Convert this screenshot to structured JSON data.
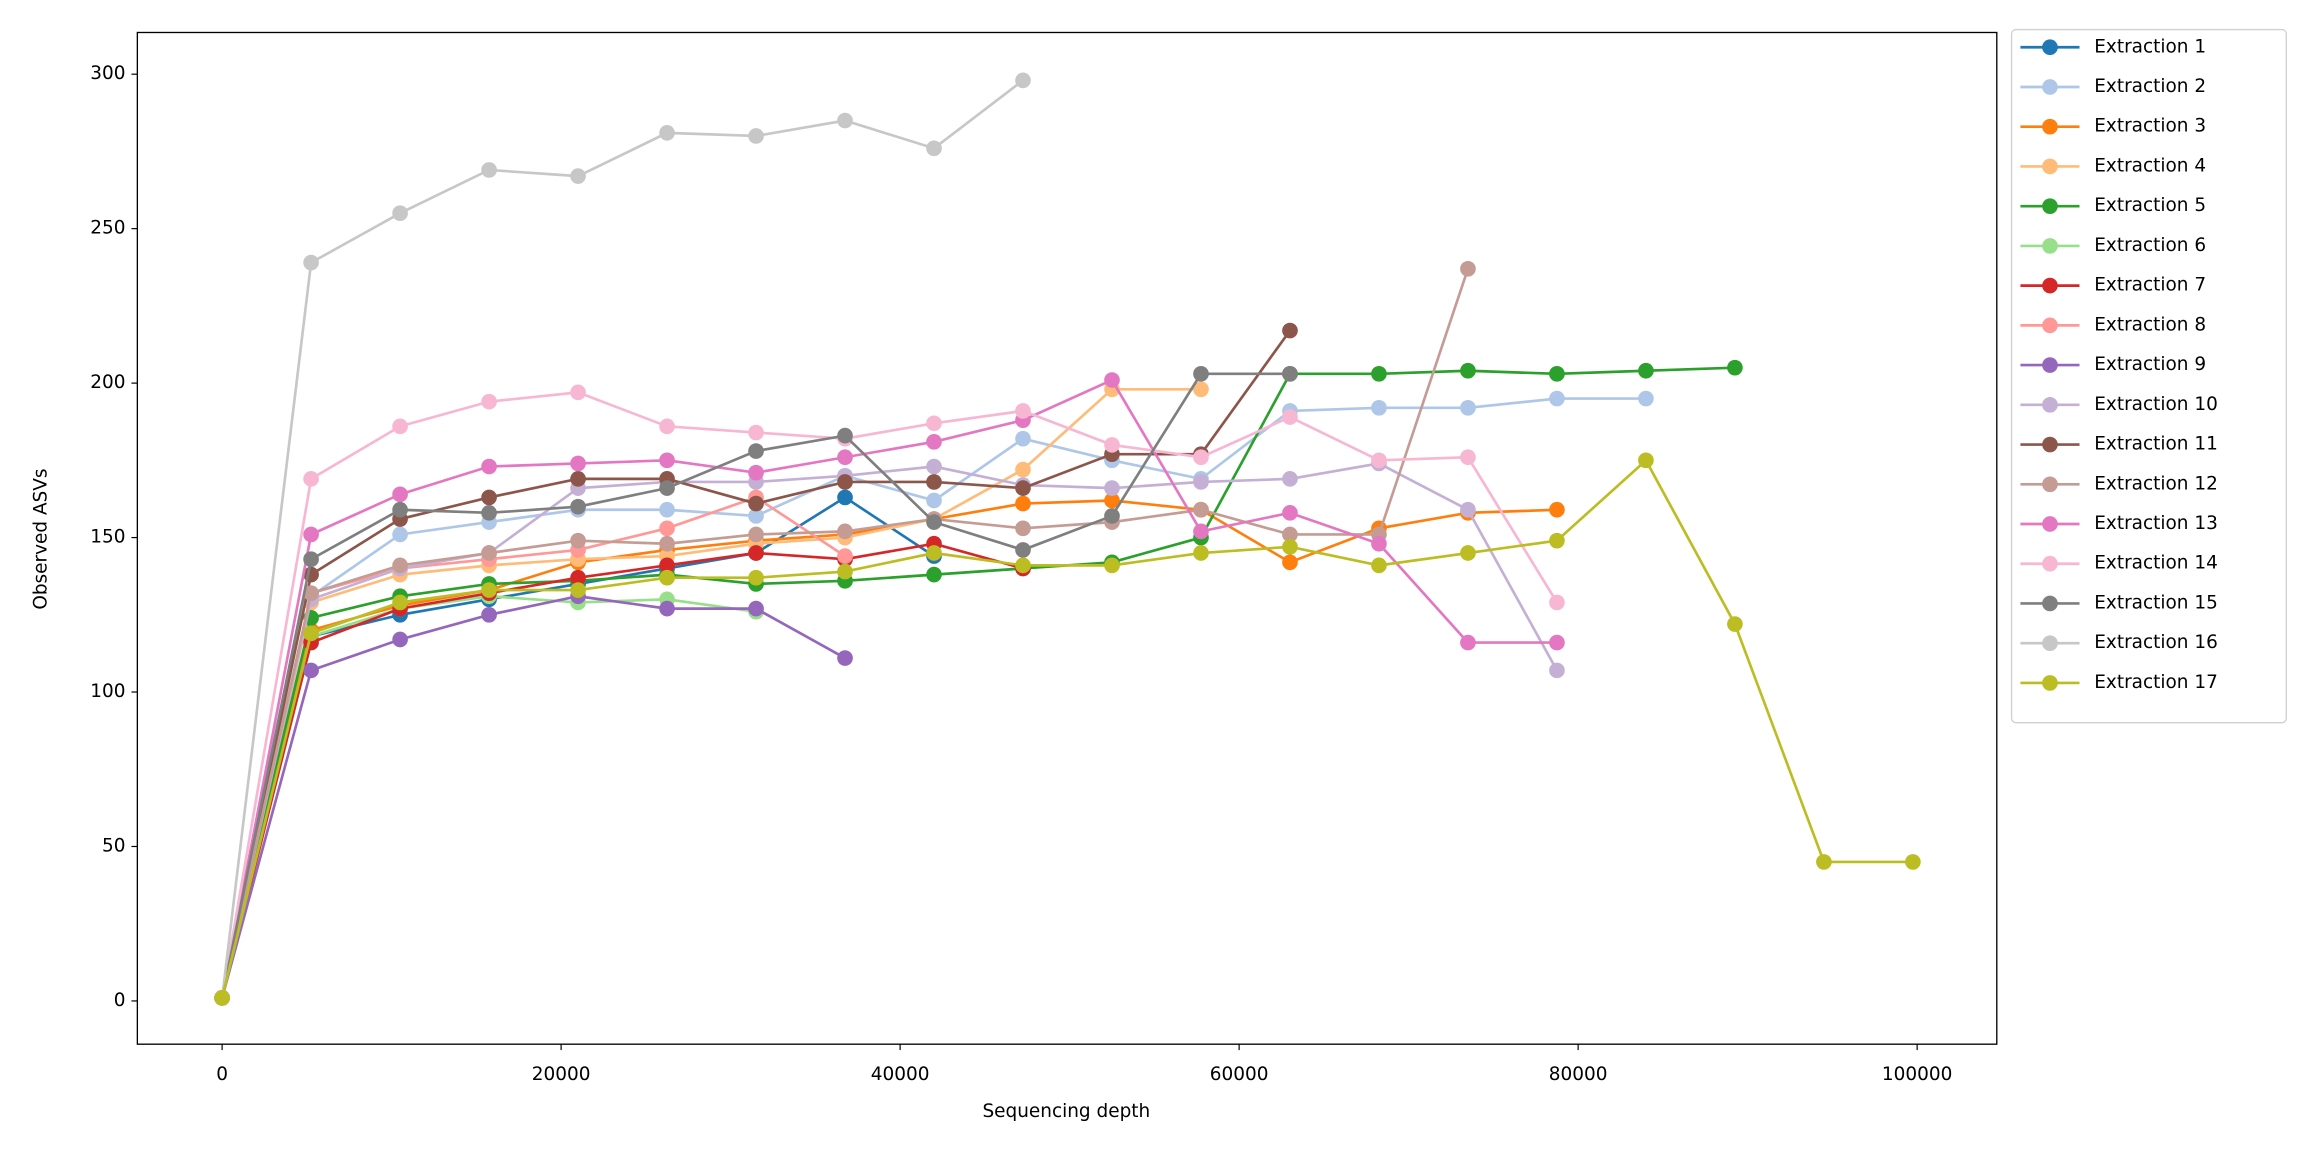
{
  "chart_data": {
    "type": "line",
    "xlabel": "Sequencing depth",
    "ylabel": "Observed ASVs",
    "x": [
      0,
      5250,
      10500,
      15750,
      21000,
      26250,
      31500,
      36750,
      42000,
      47250,
      52500,
      57750,
      63000,
      68250,
      73500,
      78750,
      84000,
      89250,
      94500,
      99750
    ],
    "xlim": [
      -5000,
      104700
    ],
    "xticks": [
      0,
      20000,
      40000,
      60000,
      80000,
      100000
    ],
    "ylim": [
      -14,
      313.5
    ],
    "yticks": [
      0,
      50,
      100,
      150,
      200,
      250,
      300
    ],
    "legend": "outside right",
    "series": [
      {
        "name": "Extraction 1",
        "color": "#1f77b4",
        "values": [
          1,
          118,
          125,
          130,
          135,
          140,
          145,
          163,
          144,
          null,
          null,
          null,
          null,
          null,
          null,
          null,
          null,
          null,
          null,
          null
        ]
      },
      {
        "name": "Extraction 2",
        "color": "#aec7e8",
        "values": [
          1,
          131,
          151,
          155,
          159,
          159,
          157,
          170,
          162,
          182,
          175,
          169,
          191,
          192,
          192,
          195,
          195,
          null,
          null,
          null
        ]
      },
      {
        "name": "Extraction 3",
        "color": "#ff7f0e",
        "values": [
          1,
          120,
          128,
          133,
          142,
          146,
          149,
          151,
          156,
          161,
          162,
          159,
          142,
          153,
          158,
          159,
          null,
          null,
          null,
          null
        ]
      },
      {
        "name": "Extraction 4",
        "color": "#ffbb78",
        "values": [
          1,
          129,
          138,
          141,
          143,
          144,
          148,
          150,
          156,
          172,
          198,
          198,
          null,
          null,
          null,
          null,
          null,
          null,
          null,
          null
        ]
      },
      {
        "name": "Extraction 5",
        "color": "#2ca02c",
        "values": [
          1,
          124,
          131,
          135,
          136,
          138,
          135,
          136,
          138,
          140,
          142,
          150,
          203,
          203,
          204,
          203,
          204,
          205,
          null,
          null
        ]
      },
      {
        "name": "Extraction 6",
        "color": "#98df8a",
        "values": [
          1,
          118,
          127,
          131,
          129,
          130,
          126,
          null,
          null,
          null,
          null,
          null,
          null,
          null,
          null,
          null,
          null,
          null,
          null,
          null
        ]
      },
      {
        "name": "Extraction 7",
        "color": "#d62728",
        "values": [
          1,
          116,
          127,
          132,
          137,
          141,
          145,
          143,
          148,
          140,
          null,
          null,
          null,
          null,
          null,
          null,
          null,
          null,
          null,
          null
        ]
      },
      {
        "name": "Extraction 8",
        "color": "#ff9896",
        "values": [
          1,
          132,
          140,
          143,
          146,
          153,
          163,
          144,
          null,
          null,
          null,
          null,
          null,
          null,
          null,
          null,
          null,
          null,
          null,
          null
        ]
      },
      {
        "name": "Extraction 9",
        "color": "#9467bd",
        "values": [
          1,
          107,
          117,
          125,
          131,
          127,
          127,
          111,
          null,
          null,
          null,
          null,
          null,
          null,
          null,
          null,
          null,
          null,
          null,
          null
        ]
      },
      {
        "name": "Extraction 10",
        "color": "#c5b0d5",
        "values": [
          1,
          130,
          140,
          145,
          166,
          168,
          168,
          170,
          173,
          167,
          166,
          168,
          169,
          174,
          159,
          107,
          null,
          null,
          null,
          null
        ]
      },
      {
        "name": "Extraction 11",
        "color": "#8c564b",
        "values": [
          1,
          138,
          156,
          163,
          169,
          169,
          161,
          168,
          168,
          166,
          177,
          177,
          217,
          null,
          null,
          null,
          null,
          null,
          null,
          null
        ]
      },
      {
        "name": "Extraction 12",
        "color": "#c49c94",
        "values": [
          1,
          132,
          141,
          145,
          149,
          148,
          151,
          152,
          156,
          153,
          155,
          159,
          151,
          151,
          237,
          null,
          null,
          null,
          null,
          null
        ]
      },
      {
        "name": "Extraction 13",
        "color": "#e377c2",
        "values": [
          1,
          151,
          164,
          173,
          174,
          175,
          171,
          176,
          181,
          188,
          201,
          152,
          158,
          148,
          116,
          116,
          null,
          null,
          null,
          null
        ]
      },
      {
        "name": "Extraction 14",
        "color": "#f7b6d2",
        "values": [
          1,
          169,
          186,
          194,
          197,
          186,
          184,
          182,
          187,
          191,
          180,
          176,
          189,
          175,
          176,
          129,
          null,
          null,
          null,
          null
        ]
      },
      {
        "name": "Extraction 15",
        "color": "#7f7f7f",
        "values": [
          1,
          143,
          159,
          158,
          160,
          166,
          178,
          183,
          155,
          146,
          157,
          203,
          203,
          null,
          null,
          null,
          null,
          null,
          null,
          null
        ]
      },
      {
        "name": "Extraction 16",
        "color": "#c7c7c7",
        "values": [
          1,
          239,
          255,
          269,
          267,
          281,
          280,
          285,
          276,
          298,
          null,
          null,
          null,
          null,
          null,
          null,
          null,
          null,
          null,
          null
        ]
      },
      {
        "name": "Extraction 17",
        "color": "#bcbd22",
        "values": [
          1,
          119,
          129,
          133,
          133,
          137,
          137,
          139,
          145,
          141,
          141,
          145,
          147,
          141,
          145,
          149,
          175,
          122,
          45,
          45
        ]
      }
    ]
  }
}
